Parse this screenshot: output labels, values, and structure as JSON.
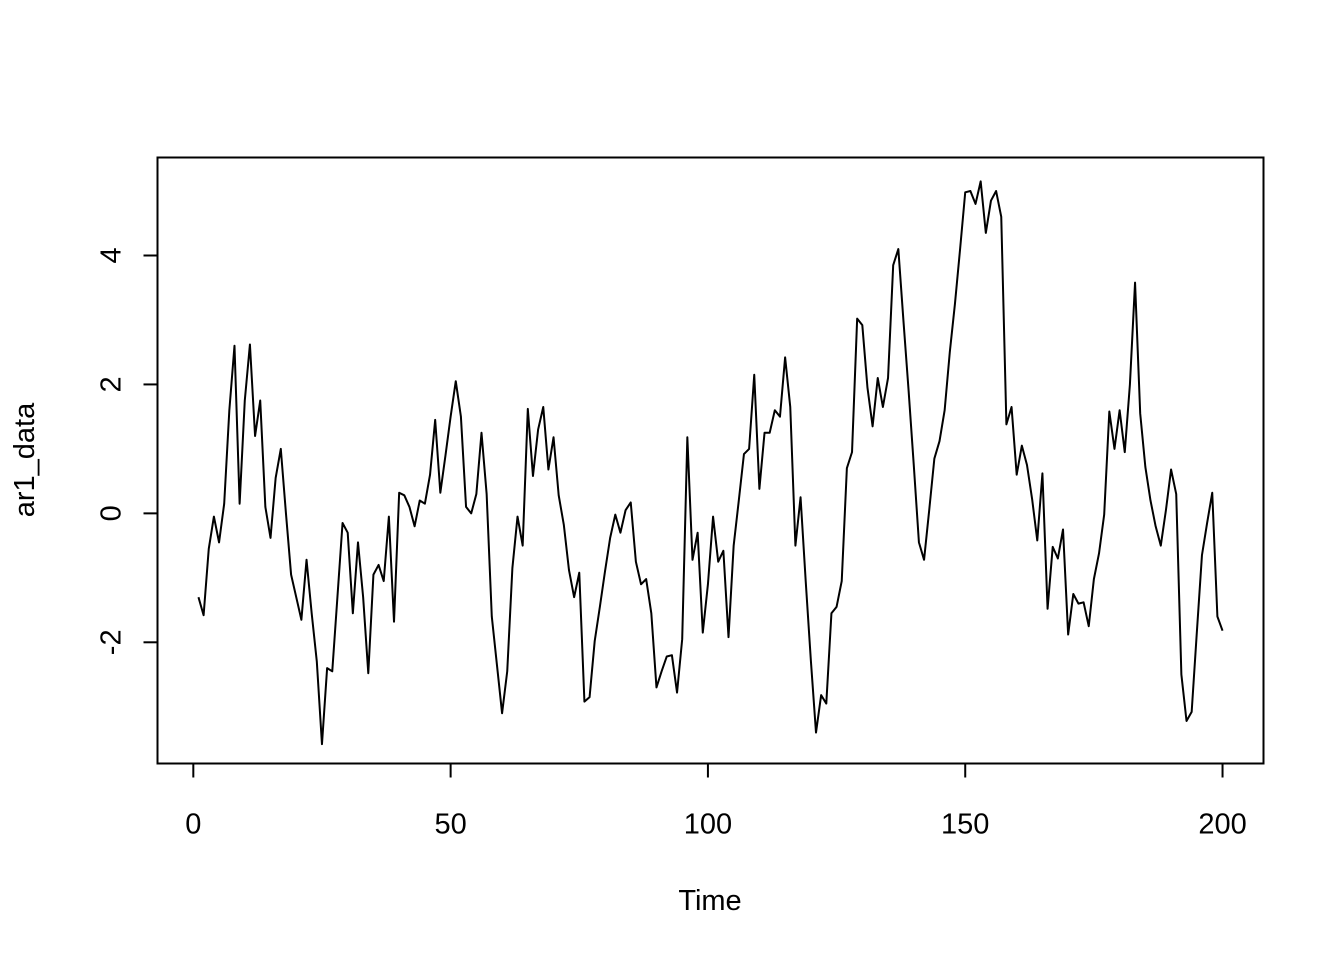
{
  "chart_data": {
    "type": "line",
    "title": "",
    "xlabel": "Time",
    "ylabel": "ar1_data",
    "xlim": [
      -6.96,
      207.96
    ],
    "ylim": [
      -3.88,
      5.52
    ],
    "x_ticks": [
      0,
      50,
      100,
      150,
      200
    ],
    "y_ticks": [
      -2,
      0,
      2,
      4
    ],
    "x_tick_labels": [
      "0",
      "50",
      "100",
      "150",
      "200"
    ],
    "y_tick_labels": [
      "-2",
      "0",
      "2",
      "4"
    ],
    "grid": false,
    "legend": "none",
    "line_color": "#000000",
    "series": [
      {
        "x_start": 1,
        "x_step": 1,
        "values": [
          -1.3,
          -1.58,
          -0.55,
          -0.05,
          -0.45,
          0.15,
          1.6,
          2.6,
          0.15,
          1.75,
          2.62,
          1.2,
          1.75,
          0.1,
          -0.38,
          0.55,
          1.0,
          0.0,
          -0.95,
          -1.3,
          -1.65,
          -0.72,
          -1.55,
          -2.3,
          -3.58,
          -2.4,
          -2.45,
          -1.3,
          -0.15,
          -0.3,
          -1.55,
          -0.45,
          -1.3,
          -2.48,
          -0.95,
          -0.8,
          -1.05,
          -0.05,
          -1.68,
          0.32,
          0.28,
          0.1,
          -0.2,
          0.2,
          0.15,
          0.6,
          1.45,
          0.32,
          0.9,
          1.5,
          2.05,
          1.5,
          0.1,
          0.0,
          0.3,
          1.25,
          0.3,
          -1.6,
          -2.35,
          -3.1,
          -2.45,
          -0.85,
          -0.05,
          -0.5,
          1.62,
          0.58,
          1.3,
          1.65,
          0.68,
          1.18,
          0.28,
          -0.18,
          -0.88,
          -1.3,
          -0.92,
          -2.92,
          -2.85,
          -1.98,
          -1.45,
          -0.9,
          -0.38,
          -0.02,
          -0.3,
          0.05,
          0.17,
          -0.75,
          -1.1,
          -1.02,
          -1.55,
          -2.7,
          -2.45,
          -2.22,
          -2.2,
          -2.78,
          -1.95,
          1.18,
          -0.72,
          -0.3,
          -1.85,
          -1.1,
          -0.05,
          -0.75,
          -0.58,
          -1.92,
          -0.5,
          0.2,
          0.92,
          1.0,
          2.15,
          0.38,
          1.25,
          1.25,
          1.6,
          1.5,
          2.42,
          1.65,
          -0.5,
          0.25,
          -1.05,
          -2.28,
          -3.4,
          -2.82,
          -2.95,
          -1.55,
          -1.45,
          -1.05,
          0.7,
          0.95,
          3.02,
          2.92,
          1.95,
          1.35,
          2.1,
          1.65,
          2.1,
          3.85,
          4.1,
          2.98,
          1.9,
          0.75,
          -0.45,
          -0.72,
          0.05,
          0.85,
          1.12,
          1.6,
          2.5,
          3.25,
          4.1,
          4.98,
          5.0,
          4.8,
          5.15,
          4.35,
          4.85,
          5.0,
          4.6,
          1.38,
          1.65,
          0.6,
          1.05,
          0.75,
          0.22,
          -0.42,
          0.62,
          -1.48,
          -0.52,
          -0.7,
          -0.25,
          -1.88,
          -1.25,
          -1.4,
          -1.38,
          -1.75,
          -1.02,
          -0.62,
          -0.02,
          1.58,
          1.0,
          1.6,
          0.95,
          2.0,
          3.58,
          1.55,
          0.72,
          0.2,
          -0.2,
          -0.5,
          0.05,
          0.68,
          0.3,
          -2.5,
          -3.22,
          -3.08,
          -1.85,
          -0.65,
          -0.15,
          0.32,
          -1.6,
          -1.82
        ]
      }
    ]
  }
}
